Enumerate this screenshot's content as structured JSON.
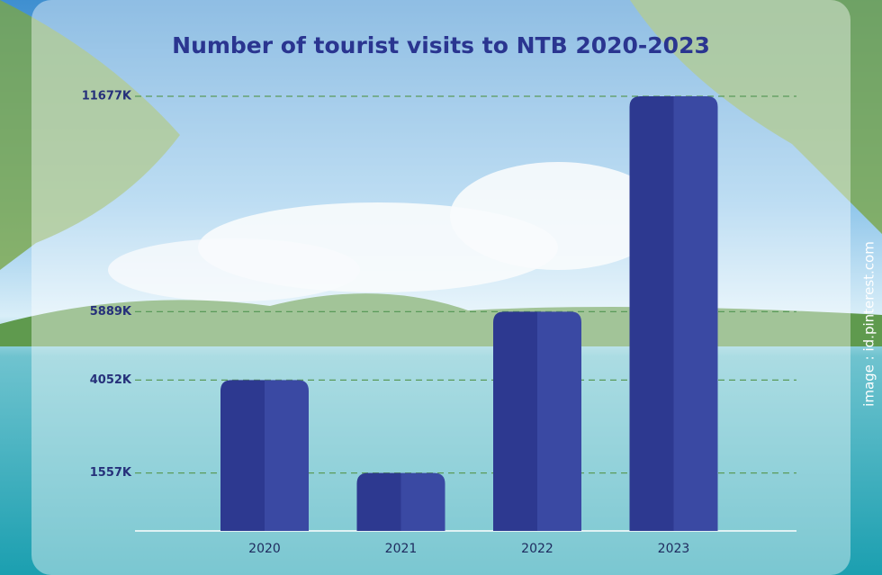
{
  "chart_data": {
    "type": "bar",
    "title": "Number of tourist visits to NTB 2020-2023",
    "categories": [
      "2020",
      "2021",
      "2022",
      "2023"
    ],
    "values": [
      4052,
      1557,
      5889,
      11677
    ],
    "color": "#2d3990",
    "shade_color": "#3a49a3",
    "ylim": [
      0,
      11677
    ],
    "yticks": [
      {
        "value": 1557,
        "label": "1557K"
      },
      {
        "value": 4052,
        "label": "4052K"
      },
      {
        "value": 5889,
        "label": "5889K"
      },
      {
        "value": 11677,
        "label": "11677K"
      }
    ],
    "grid": true,
    "source": "image : id.pinterest.com"
  }
}
